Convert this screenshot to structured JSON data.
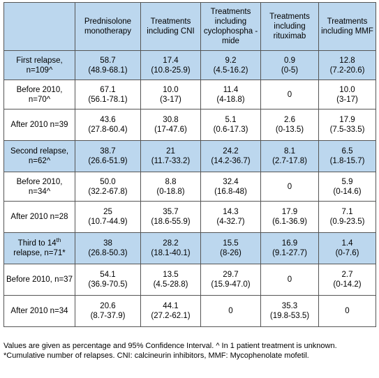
{
  "headers": {
    "h0": "",
    "h1": "Prednisolone monotherapy",
    "h2": "Treatments including CNI",
    "h3": "Treatments including cyclophospha -mide",
    "h4": "Treatments including rituximab",
    "h5": "Treatments including MMF"
  },
  "rows": [
    {
      "label": "First relapse, n=109^",
      "c1v": "58.7",
      "c1c": "(48.9-68.1)",
      "c2v": "17.4",
      "c2c": "(10.8-25.9)",
      "c3v": "9.2",
      "c3c": "(4.5-16.2)",
      "c4v": "0.9",
      "c4c": "(0-5)",
      "c5v": "12.8",
      "c5c": "(7.2-20.6)"
    },
    {
      "label": "Before 2010, n=70^",
      "c1v": "67.1",
      "c1c": "(56.1-78.1)",
      "c2v": "10.0",
      "c2c": "(3-17)",
      "c3v": "11.4",
      "c3c": "(4-18.8)",
      "c4v": "0",
      "c4c": "",
      "c5v": "10.0",
      "c5c": "(3-17)"
    },
    {
      "label": "After 2010 n=39",
      "c1v": "43.6",
      "c1c": "(27.8-60.4)",
      "c2v": "30.8",
      "c2c": "(17-47.6)",
      "c3v": "5.1",
      "c3c": "(0.6-17.3)",
      "c4v": "2.6",
      "c4c": "(0-13.5)",
      "c5v": "17.9",
      "c5c": "(7.5-33.5)"
    },
    {
      "label": "Second relapse, n=62^",
      "c1v": "38.7",
      "c1c": "(26.6-51.9)",
      "c2v": "21",
      "c2c": "(11.7-33.2)",
      "c3v": "24.2",
      "c3c": "(14.2-36.7)",
      "c4v": "8.1",
      "c4c": "(2.7-17.8)",
      "c5v": "6.5",
      "c5c": "(1.8-15.7)"
    },
    {
      "label": "Before 2010, n=34^",
      "c1v": "50.0",
      "c1c": "(32.2-67.8)",
      "c2v": "8.8",
      "c2c": "(0-18.8)",
      "c3v": "32.4",
      "c3c": "(16.8-48)",
      "c4v": "0",
      "c4c": "",
      "c5v": "5.9",
      "c5c": "(0-14.6)"
    },
    {
      "label": "After 2010 n=28",
      "c1v": "25",
      "c1c": "(10.7-44.9)",
      "c2v": "35.7",
      "c2c": "(18.6-55.9)",
      "c3v": "14.3",
      "c3c": "(4-32.7)",
      "c4v": "17.9",
      "c4c": "(6.1-36.9)",
      "c5v": "7.1",
      "c5c": "(0.9-23.5)"
    },
    {
      "label_pre": "Third to 14",
      "label_sup": "th",
      "label_post": "relapse, n=71*",
      "c1v": "38",
      "c1c": "(26.8-50.3)",
      "c2v": "28.2",
      "c2c": "(18.1-40.1)",
      "c3v": "15.5",
      "c3c": "(8-26)",
      "c4v": "16.9",
      "c4c": "(9.1-27.7)",
      "c5v": "1.4",
      "c5c": "(0-7.6)"
    },
    {
      "label": "Before 2010, n=37",
      "c1v": "54.1",
      "c1c": "(36.9-70.5)",
      "c2v": "13.5",
      "c2c": "(4.5-28.8)",
      "c3v": "29.7",
      "c3c": "(15.9-47.0)",
      "c4v": "0",
      "c4c": "",
      "c5v": "2.7",
      "c5c": "(0-14.2)"
    },
    {
      "label": "After 2010 n=34",
      "c1v": "20.6",
      "c1c": "(8.7-37.9)",
      "c2v": "44.1",
      "c2c": "(27.2-62.1)",
      "c3v": "0",
      "c3c": "",
      "c4v": "35.3",
      "c4c": "(19.8-53.5)",
      "c5v": "0",
      "c5c": ""
    }
  ],
  "footnote": "Values are given as percentage and 95% Confidence Interval. ^ In 1 patient treatment is unknown. *Cumulative number of relapses. CNI: calcineurin inhibitors, MMF: Mycophenolate mofetil.",
  "colors": {
    "header_bg": "#bcd7ee",
    "border": "#555555"
  }
}
